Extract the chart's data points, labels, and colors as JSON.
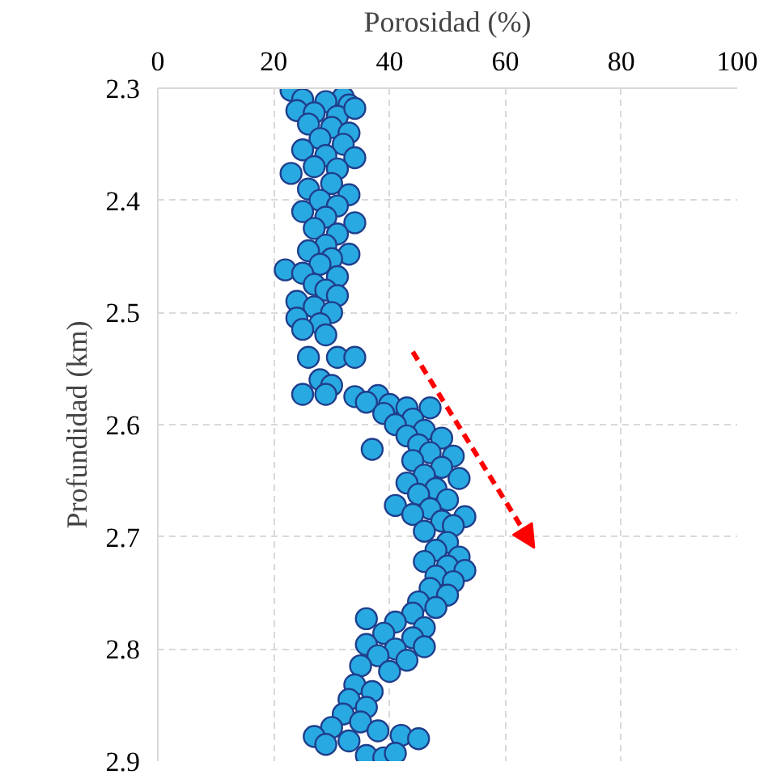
{
  "chart_data": {
    "type": "scatter",
    "xlabel": "Porosidad (%)",
    "ylabel": "Profundidad (km)",
    "xlim": [
      0,
      100
    ],
    "xticks": [
      0,
      20,
      40,
      60,
      80,
      100
    ],
    "ylim": [
      2.9,
      2.3
    ],
    "yticks": [
      2.3,
      2.4,
      2.5,
      2.6,
      2.7,
      2.8,
      2.9
    ],
    "grid": true,
    "marker": "circle",
    "series": [
      {
        "color": "#29a9e1",
        "x": [
          23,
          32,
          25,
          29,
          33,
          24,
          27,
          31,
          34,
          26,
          30,
          33,
          28,
          32,
          25,
          29,
          34,
          27,
          31,
          23,
          30,
          26,
          33,
          28,
          31,
          25,
          29,
          34,
          27,
          31,
          29,
          26,
          33,
          30,
          28,
          22,
          25,
          31,
          27,
          29,
          31,
          24,
          27,
          30,
          24,
          28,
          25,
          29,
          26,
          31,
          34,
          28,
          30,
          25,
          29,
          34,
          38,
          36,
          40,
          43,
          47,
          39,
          44,
          41,
          46,
          43,
          49,
          45,
          37,
          47,
          51,
          44,
          49,
          46,
          52,
          43,
          48,
          45,
          50,
          41,
          47,
          53,
          44,
          49,
          51,
          46,
          50,
          48,
          52,
          46,
          50,
          53,
          48,
          51,
          47,
          50,
          45,
          48,
          44,
          36,
          41,
          46,
          39,
          44,
          36,
          41,
          46,
          38,
          43,
          35,
          40,
          34,
          37,
          33,
          36,
          32,
          35,
          30,
          38,
          42,
          27,
          33,
          45,
          29,
          36,
          39,
          41
        ],
        "values": [
          2.302,
          2.308,
          2.31,
          2.312,
          2.315,
          2.32,
          2.322,
          2.325,
          2.318,
          2.332,
          2.335,
          2.34,
          2.345,
          2.35,
          2.355,
          2.36,
          2.362,
          2.37,
          2.372,
          2.376,
          2.385,
          2.39,
          2.395,
          2.4,
          2.405,
          2.41,
          2.415,
          2.42,
          2.425,
          2.43,
          2.44,
          2.445,
          2.448,
          2.452,
          2.457,
          2.462,
          2.465,
          2.468,
          2.475,
          2.48,
          2.485,
          2.49,
          2.495,
          2.5,
          2.505,
          2.51,
          2.515,
          2.52,
          2.54,
          2.54,
          2.54,
          2.56,
          2.565,
          2.573,
          2.573,
          2.575,
          2.574,
          2.58,
          2.582,
          2.585,
          2.585,
          2.59,
          2.595,
          2.6,
          2.605,
          2.61,
          2.612,
          2.618,
          2.622,
          2.625,
          2.628,
          2.632,
          2.638,
          2.645,
          2.648,
          2.652,
          2.657,
          2.662,
          2.667,
          2.672,
          2.675,
          2.682,
          2.68,
          2.686,
          2.69,
          2.695,
          2.705,
          2.712,
          2.718,
          2.722,
          2.726,
          2.73,
          2.735,
          2.74,
          2.746,
          2.752,
          2.758,
          2.763,
          2.768,
          2.773,
          2.776,
          2.781,
          2.786,
          2.79,
          2.796,
          2.8,
          2.798,
          2.806,
          2.81,
          2.815,
          2.82,
          2.832,
          2.838,
          2.845,
          2.852,
          2.858,
          2.865,
          2.87,
          2.873,
          2.877,
          2.878,
          2.882,
          2.88,
          2.885,
          2.895,
          2.897,
          2.893
        ]
      }
    ]
  }
}
